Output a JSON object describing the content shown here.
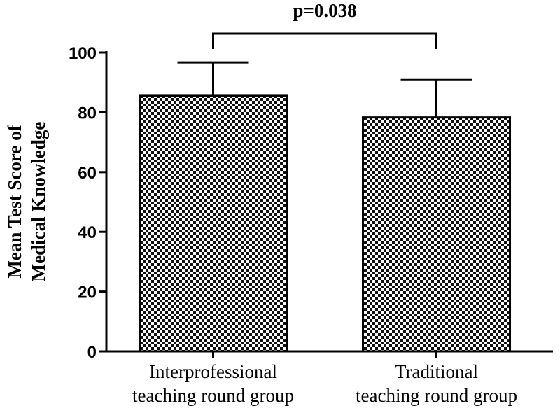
{
  "chart_data": {
    "type": "bar",
    "title": "",
    "xlabel": "",
    "ylabel_lines": [
      "Mean Test Score of",
      "Medical Knowledge"
    ],
    "categories": [
      [
        "Interprofessional",
        "teaching round group"
      ],
      [
        "Traditional",
        "teaching round group"
      ]
    ],
    "values": [
      85.5,
      78.3
    ],
    "error_upper": [
      11.2,
      12.5
    ],
    "ylim": [
      0,
      100
    ],
    "yticks": [
      0,
      20,
      40,
      60,
      80,
      100
    ],
    "grid": false,
    "legend": "none",
    "bar_pattern": "checkerboard",
    "colors": {
      "bar_fill_dark": "#111111",
      "bar_fill_light": "#ffffff",
      "axis": "#000000"
    },
    "annotation": {
      "text": "p=0.038",
      "between": [
        0,
        1
      ]
    }
  }
}
